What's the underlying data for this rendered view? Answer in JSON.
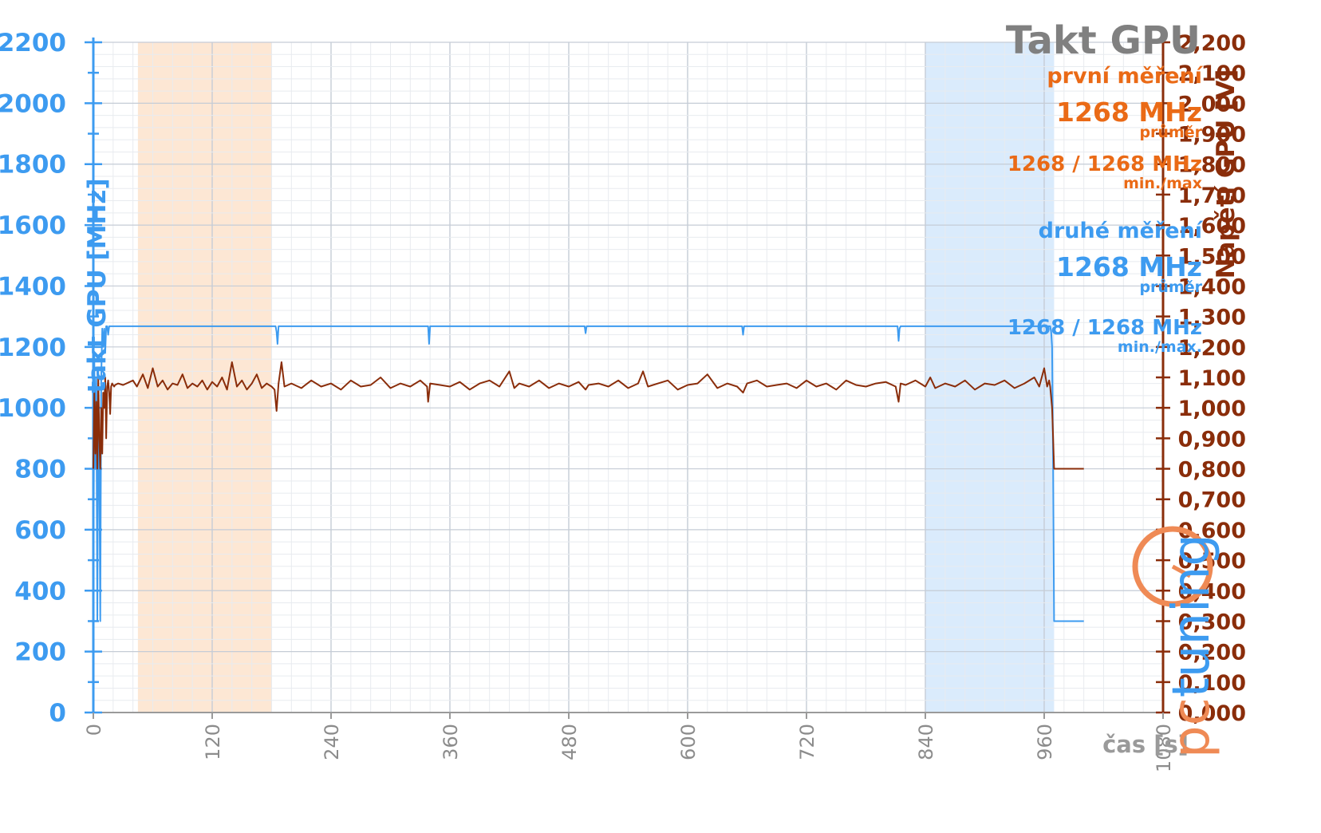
{
  "chart_data": {
    "type": "line",
    "title": "Takt GPU",
    "xlabel": "čas [s]",
    "ylabel_left": "takt GPU [MHz]",
    "ylabel_right": "Napětí GPU [V]",
    "xlim": [
      0,
      1080
    ],
    "ylim_left": [
      0,
      2200
    ],
    "ylim_right": [
      0,
      2.2
    ],
    "x_ticks": [
      "0",
      "120",
      "240",
      "360",
      "480",
      "600",
      "720",
      "840",
      "960",
      "1080"
    ],
    "y_ticks_left": [
      "0",
      "200",
      "400",
      "600",
      "800",
      "1000",
      "1200",
      "1400",
      "1600",
      "1800",
      "2000",
      "2200"
    ],
    "y_ticks_right": [
      "0,000",
      "0,100",
      "0,200",
      "0,300",
      "0,400",
      "0,500",
      "0,600",
      "0,700",
      "0,800",
      "0,900",
      "1,000",
      "1,100",
      "1,200",
      "1,300",
      "1,400",
      "1,500",
      "1,600",
      "1,700",
      "1,800",
      "1,900",
      "2,000",
      "2,100",
      "2,200"
    ],
    "grid": true,
    "highlight_ranges": [
      {
        "from": 45,
        "to": 180,
        "color": "#fde3cc"
      },
      {
        "from": 840,
        "to": 970,
        "color": "#d3e8fb"
      }
    ],
    "series": [
      {
        "axis": "left",
        "color": "#3d9bf0",
        "points": [
          [
            0,
            300
          ],
          [
            1,
            1170
          ],
          [
            2,
            800
          ],
          [
            3,
            1100
          ],
          [
            4,
            300
          ],
          [
            5,
            1000
          ],
          [
            6,
            800
          ],
          [
            7,
            300
          ],
          [
            8,
            1100
          ],
          [
            9,
            1260
          ],
          [
            10,
            1200
          ],
          [
            11,
            1260
          ],
          [
            12,
            1180
          ],
          [
            13,
            1268
          ],
          [
            14,
            1268
          ],
          [
            15,
            1240
          ],
          [
            16,
            1268
          ],
          [
            17,
            1268
          ],
          [
            18,
            1268
          ],
          [
            19,
            1268
          ],
          [
            20,
            1268
          ],
          [
            25,
            1268
          ],
          [
            184,
            1268
          ],
          [
            185,
            1250
          ],
          [
            186,
            1210
          ],
          [
            187,
            1268
          ],
          [
            338,
            1268
          ],
          [
            339,
            1210
          ],
          [
            340,
            1268
          ],
          [
            496,
            1268
          ],
          [
            497,
            1245
          ],
          [
            498,
            1268
          ],
          [
            655,
            1268
          ],
          [
            656,
            1240
          ],
          [
            657,
            1268
          ],
          [
            812,
            1268
          ],
          [
            813,
            1220
          ],
          [
            814,
            1260
          ],
          [
            815,
            1268
          ],
          [
            966,
            1268
          ],
          [
            967,
            1250
          ],
          [
            968,
            1200
          ],
          [
            969,
            800
          ],
          [
            970,
            300
          ],
          [
            1000,
            300
          ]
        ]
      },
      {
        "axis": "right",
        "color": "#8a2d0a",
        "points": [
          [
            0,
            0.8
          ],
          [
            1,
            1.05
          ],
          [
            2,
            0.85
          ],
          [
            3,
            1.02
          ],
          [
            4,
            0.8
          ],
          [
            5,
            1.1
          ],
          [
            6,
            0.9
          ],
          [
            7,
            0.8
          ],
          [
            8,
            1.0
          ],
          [
            9,
            0.85
          ],
          [
            10,
            1.05
          ],
          [
            11,
            1.0
          ],
          [
            12,
            1.1
          ],
          [
            13,
            0.9
          ],
          [
            14,
            1.07
          ],
          [
            15,
            1.09
          ],
          [
            16,
            1.05
          ],
          [
            17,
            0.98
          ],
          [
            18,
            1.07
          ],
          [
            19,
            1.08
          ],
          [
            20,
            1.075
          ],
          [
            21,
            1.07
          ],
          [
            22,
            1.075
          ],
          [
            25,
            1.08
          ],
          [
            30,
            1.075
          ],
          [
            40,
            1.09
          ],
          [
            44,
            1.07
          ],
          [
            50,
            1.11
          ],
          [
            55,
            1.065
          ],
          [
            60,
            1.13
          ],
          [
            65,
            1.07
          ],
          [
            70,
            1.09
          ],
          [
            75,
            1.06
          ],
          [
            80,
            1.08
          ],
          [
            85,
            1.075
          ],
          [
            90,
            1.11
          ],
          [
            95,
            1.065
          ],
          [
            100,
            1.08
          ],
          [
            105,
            1.07
          ],
          [
            110,
            1.09
          ],
          [
            115,
            1.06
          ],
          [
            120,
            1.085
          ],
          [
            125,
            1.07
          ],
          [
            130,
            1.1
          ],
          [
            135,
            1.06
          ],
          [
            140,
            1.15
          ],
          [
            145,
            1.07
          ],
          [
            150,
            1.09
          ],
          [
            155,
            1.06
          ],
          [
            160,
            1.08
          ],
          [
            165,
            1.11
          ],
          [
            170,
            1.065
          ],
          [
            175,
            1.08
          ],
          [
            180,
            1.07
          ],
          [
            183,
            1.06
          ],
          [
            185,
            0.99
          ],
          [
            187,
            1.08
          ],
          [
            190,
            1.15
          ],
          [
            193,
            1.07
          ],
          [
            200,
            1.08
          ],
          [
            210,
            1.065
          ],
          [
            220,
            1.09
          ],
          [
            230,
            1.07
          ],
          [
            240,
            1.08
          ],
          [
            250,
            1.06
          ],
          [
            260,
            1.09
          ],
          [
            270,
            1.07
          ],
          [
            280,
            1.075
          ],
          [
            290,
            1.1
          ],
          [
            300,
            1.065
          ],
          [
            310,
            1.08
          ],
          [
            320,
            1.07
          ],
          [
            330,
            1.09
          ],
          [
            337,
            1.07
          ],
          [
            338,
            1.02
          ],
          [
            340,
            1.08
          ],
          [
            350,
            1.075
          ],
          [
            360,
            1.07
          ],
          [
            370,
            1.085
          ],
          [
            380,
            1.06
          ],
          [
            390,
            1.08
          ],
          [
            400,
            1.09
          ],
          [
            410,
            1.07
          ],
          [
            420,
            1.12
          ],
          [
            425,
            1.065
          ],
          [
            430,
            1.08
          ],
          [
            440,
            1.07
          ],
          [
            450,
            1.09
          ],
          [
            460,
            1.065
          ],
          [
            470,
            1.08
          ],
          [
            480,
            1.07
          ],
          [
            490,
            1.085
          ],
          [
            497,
            1.06
          ],
          [
            500,
            1.075
          ],
          [
            510,
            1.08
          ],
          [
            520,
            1.07
          ],
          [
            530,
            1.09
          ],
          [
            540,
            1.065
          ],
          [
            550,
            1.08
          ],
          [
            555,
            1.12
          ],
          [
            560,
            1.07
          ],
          [
            570,
            1.08
          ],
          [
            580,
            1.09
          ],
          [
            590,
            1.06
          ],
          [
            600,
            1.075
          ],
          [
            610,
            1.08
          ],
          [
            620,
            1.11
          ],
          [
            630,
            1.065
          ],
          [
            640,
            1.08
          ],
          [
            650,
            1.07
          ],
          [
            656,
            1.05
          ],
          [
            660,
            1.08
          ],
          [
            670,
            1.09
          ],
          [
            680,
            1.07
          ],
          [
            690,
            1.075
          ],
          [
            700,
            1.08
          ],
          [
            710,
            1.065
          ],
          [
            720,
            1.09
          ],
          [
            730,
            1.07
          ],
          [
            740,
            1.08
          ],
          [
            750,
            1.06
          ],
          [
            760,
            1.09
          ],
          [
            770,
            1.075
          ],
          [
            780,
            1.07
          ],
          [
            790,
            1.08
          ],
          [
            800,
            1.085
          ],
          [
            810,
            1.07
          ],
          [
            813,
            1.02
          ],
          [
            815,
            1.08
          ],
          [
            820,
            1.075
          ],
          [
            830,
            1.09
          ],
          [
            840,
            1.07
          ],
          [
            845,
            1.1
          ],
          [
            850,
            1.065
          ],
          [
            860,
            1.08
          ],
          [
            870,
            1.07
          ],
          [
            880,
            1.09
          ],
          [
            890,
            1.06
          ],
          [
            900,
            1.08
          ],
          [
            910,
            1.075
          ],
          [
            920,
            1.09
          ],
          [
            930,
            1.065
          ],
          [
            940,
            1.08
          ],
          [
            950,
            1.1
          ],
          [
            955,
            1.07
          ],
          [
            960,
            1.13
          ],
          [
            963,
            1.07
          ],
          [
            965,
            1.09
          ],
          [
            966,
            1.07
          ],
          [
            968,
            1.0
          ],
          [
            969,
            0.9
          ],
          [
            970,
            0.8
          ],
          [
            1000,
            0.8
          ]
        ]
      }
    ],
    "annotations": {
      "first": {
        "heading": "první měření",
        "avg_value": "1268 MHz",
        "avg_label": "průměr",
        "minmax_value": "1268 / 1268 MHz",
        "minmax_label": "min./max"
      },
      "second": {
        "heading": "druhé měření",
        "avg_value": "1268 MHz",
        "avg_label": "průměr",
        "minmax_value": "1268 / 1268 MHz",
        "minmax_label": "min./max."
      }
    }
  },
  "logo": {
    "text": "pctuning",
    "colors": {
      "pc": "#ef8a55",
      "tuning": "#3d9bf0"
    }
  },
  "colors": {
    "left_axis": "#3d9bf0",
    "right_axis": "#8a2d0a",
    "grid_major": "#c5ccd6",
    "grid_minor": "#e8ebef",
    "title": "#808080"
  }
}
